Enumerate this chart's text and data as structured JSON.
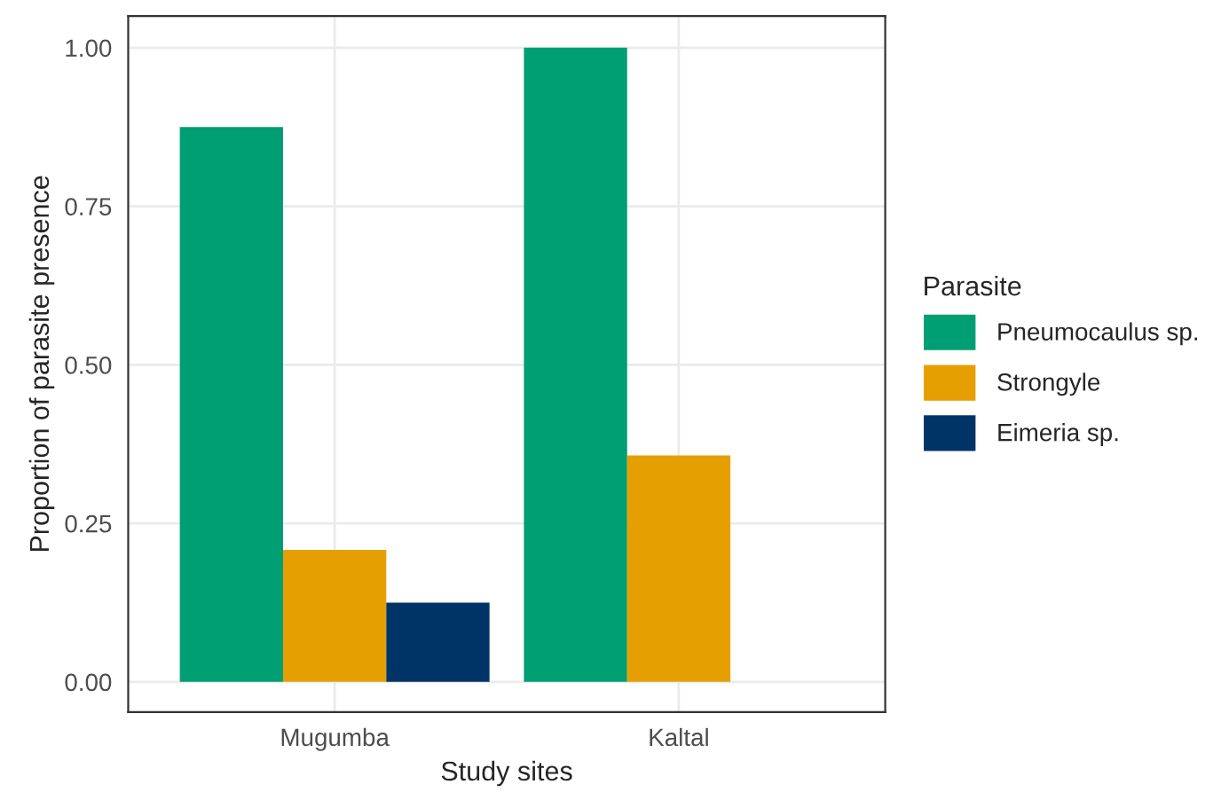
{
  "chart_data": {
    "type": "bar",
    "xlabel": "Study sites",
    "ylabel": "Proportion of parasite presence",
    "legend_title": "Parasite",
    "categories": [
      "Mugumba",
      "Kaltal"
    ],
    "series": [
      {
        "name": "Pneumocaulus sp.",
        "color": "#009e73",
        "values": [
          0.875,
          1.0
        ]
      },
      {
        "name": "Strongyle",
        "color": "#e69f00",
        "values": [
          0.208,
          0.357
        ]
      },
      {
        "name": "Eimeria sp.",
        "color": "#003366",
        "values": [
          0.125,
          null
        ]
      }
    ],
    "ylim": [
      -0.0475,
      1.05
    ],
    "yticks": [
      {
        "value": 0,
        "label": "0.00"
      },
      {
        "value": 0.25,
        "label": "0.25"
      },
      {
        "value": 0.5,
        "label": "0.50"
      },
      {
        "value": 0.75,
        "label": "0.75"
      },
      {
        "value": 1,
        "label": "1.00"
      }
    ],
    "grid": true,
    "legend": "right"
  }
}
